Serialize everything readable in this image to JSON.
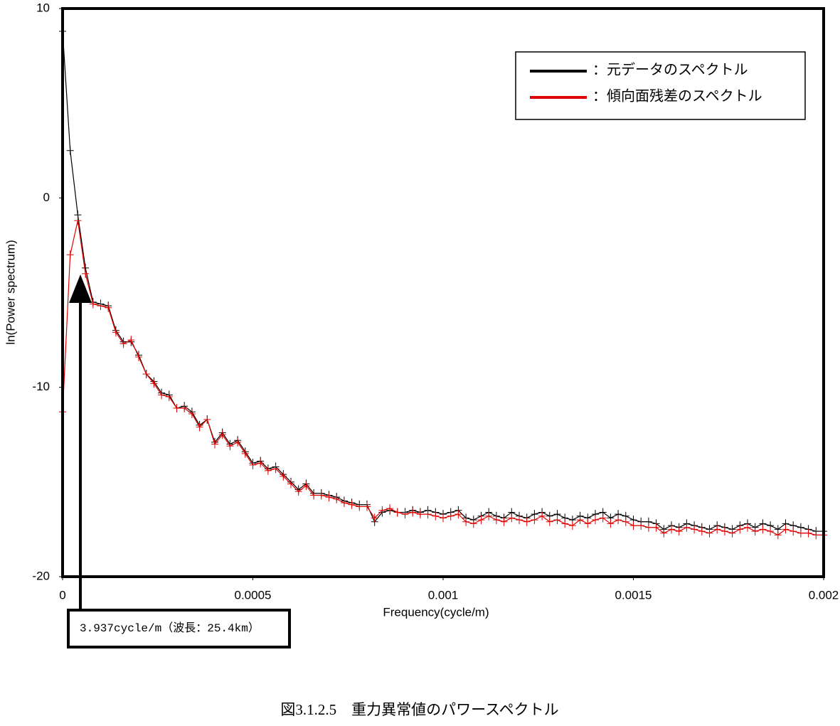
{
  "chart_data": {
    "type": "line",
    "x_label": "Frequency(cycle/m)",
    "y_label": "ln(Power spectrum)",
    "annotation": "3.937cycle/m（波長：25.4km）",
    "caption": "図3.1.2.5　重力異常値のパワースペクトル",
    "legend": "upper right",
    "xlim": [
      0,
      0.002
    ],
    "xticks": [
      0,
      0.0005,
      0.001,
      0.0015,
      0.002
    ],
    "ylim": [
      -20,
      10
    ],
    "yticks": [
      10,
      0,
      -10,
      -20
    ],
    "x": [
      0,
      2e-05,
      4e-05,
      6e-05,
      8e-05,
      0.0001,
      0.00012,
      0.00014,
      0.00016,
      0.00018,
      0.0002,
      0.00022,
      0.00024,
      0.00026,
      0.00028,
      0.0003,
      0.00032,
      0.00034,
      0.00036,
      0.00038,
      0.0004,
      0.00042,
      0.00044,
      0.00046,
      0.00048,
      0.0005,
      0.00052,
      0.00054,
      0.00056,
      0.00058,
      0.0006,
      0.00062,
      0.00064,
      0.00066,
      0.00068,
      0.0007,
      0.00072,
      0.00074,
      0.00076,
      0.00078,
      0.0008,
      0.00082,
      0.00084,
      0.00086,
      0.00088,
      0.0009,
      0.00092,
      0.00094,
      0.00096,
      0.00098,
      0.001,
      0.00102,
      0.00104,
      0.00106,
      0.00108,
      0.0011,
      0.00112,
      0.00114,
      0.00116,
      0.00118,
      0.0012,
      0.00122,
      0.00124,
      0.00126,
      0.00128,
      0.0013,
      0.00132,
      0.00134,
      0.00136,
      0.00138,
      0.0014,
      0.00142,
      0.00144,
      0.00146,
      0.00148,
      0.0015,
      0.00152,
      0.00154,
      0.00156,
      0.00158,
      0.0016,
      0.00162,
      0.00164,
      0.00166,
      0.00168,
      0.0017,
      0.00172,
      0.00174,
      0.00176,
      0.00178,
      0.0018,
      0.00182,
      0.00184,
      0.00186,
      0.00188,
      0.0019,
      0.00192,
      0.00194,
      0.00196,
      0.00198,
      0.002
    ],
    "series": [
      {
        "name": "：元データのスペクトル",
        "color": "#000000",
        "values": [
          8.8,
          2.5,
          -0.9,
          -3.7,
          -5.5,
          -5.6,
          -5.7,
          -7.0,
          -7.6,
          -7.6,
          -8.3,
          -9.3,
          -9.7,
          -10.3,
          -10.4,
          -11.1,
          -11.0,
          -11.3,
          -12.0,
          -11.7,
          -12.9,
          -12.4,
          -13.0,
          -12.8,
          -13.4,
          -14.0,
          -13.9,
          -14.3,
          -14.2,
          -14.6,
          -15.0,
          -15.4,
          -15.1,
          -15.6,
          -15.6,
          -15.7,
          -15.8,
          -16.0,
          -16.1,
          -16.2,
          -16.2,
          -17.1,
          -16.6,
          -16.5,
          -16.6,
          -16.6,
          -16.5,
          -16.6,
          -16.5,
          -16.6,
          -16.7,
          -16.6,
          -16.5,
          -16.9,
          -17.0,
          -16.8,
          -16.6,
          -16.8,
          -16.9,
          -16.6,
          -16.8,
          -16.9,
          -16.7,
          -16.6,
          -16.8,
          -16.7,
          -16.9,
          -17.0,
          -16.8,
          -16.9,
          -16.7,
          -16.6,
          -16.9,
          -16.7,
          -16.8,
          -17.0,
          -17.1,
          -17.1,
          -17.2,
          -17.5,
          -17.3,
          -17.4,
          -17.2,
          -17.3,
          -17.4,
          -17.5,
          -17.3,
          -17.4,
          -17.5,
          -17.3,
          -17.2,
          -17.4,
          -17.2,
          -17.3,
          -17.5,
          -17.2,
          -17.3,
          -17.4,
          -17.5,
          -17.6,
          -17.6
        ]
      },
      {
        "name": "：傾向面残差のスペクトル",
        "color": "#e00000",
        "values": [
          -11.3,
          -3.0,
          -1.2,
          -4.0,
          -5.6,
          -5.7,
          -5.8,
          -7.1,
          -7.7,
          -7.5,
          -8.4,
          -9.3,
          -9.8,
          -10.4,
          -10.5,
          -11.1,
          -11.1,
          -11.4,
          -12.1,
          -11.7,
          -13.0,
          -12.5,
          -13.1,
          -12.9,
          -13.5,
          -14.1,
          -14.0,
          -14.4,
          -14.3,
          -14.7,
          -15.1,
          -15.5,
          -15.2,
          -15.7,
          -15.7,
          -15.8,
          -15.9,
          -16.1,
          -16.2,
          -16.3,
          -16.3,
          -16.9,
          -16.5,
          -16.4,
          -16.6,
          -16.7,
          -16.6,
          -16.7,
          -16.7,
          -16.8,
          -16.9,
          -16.8,
          -16.7,
          -17.1,
          -17.2,
          -17.0,
          -16.8,
          -17.0,
          -17.1,
          -16.9,
          -17.0,
          -17.1,
          -17.0,
          -16.8,
          -17.1,
          -17.0,
          -17.2,
          -17.3,
          -17.0,
          -17.2,
          -17.0,
          -16.9,
          -17.2,
          -17.0,
          -17.1,
          -17.3,
          -17.3,
          -17.4,
          -17.4,
          -17.7,
          -17.5,
          -17.6,
          -17.4,
          -17.5,
          -17.6,
          -17.7,
          -17.5,
          -17.6,
          -17.7,
          -17.5,
          -17.4,
          -17.6,
          -17.5,
          -17.6,
          -17.8,
          -17.5,
          -17.6,
          -17.7,
          -17.7,
          -17.8,
          -17.8
        ]
      }
    ]
  }
}
